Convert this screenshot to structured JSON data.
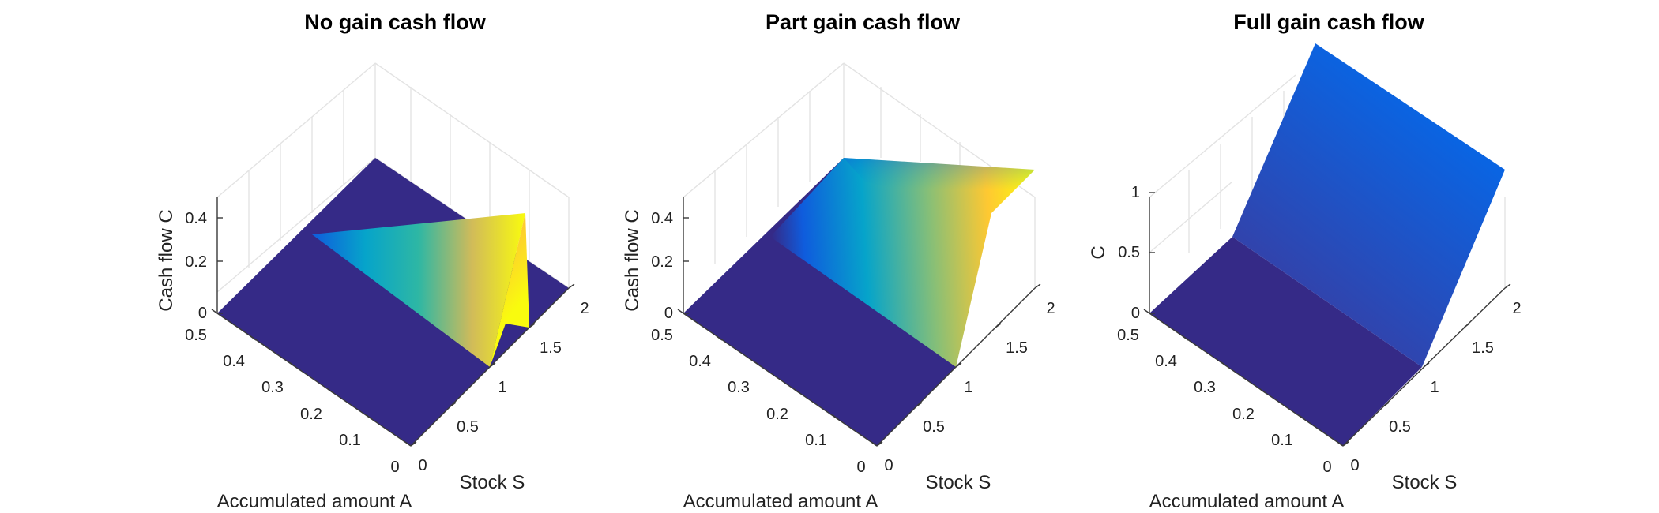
{
  "chart_data": [
    {
      "type": "surface",
      "panel": "no-gain",
      "title": "No gain cash flow",
      "xlabel": "Accumulated amount A",
      "ylabel": "Stock S",
      "zlabel": "Cash flow C",
      "xlim": [
        0,
        0.5
      ],
      "ylim": [
        0,
        2
      ],
      "zlim": [
        0,
        0.45
      ],
      "xticks": [
        "0",
        "0.1",
        "0.2",
        "0.3",
        "0.4",
        "0.5"
      ],
      "yticks": [
        "0",
        "0.5",
        "1",
        "1.5",
        "2"
      ],
      "zticks": [
        "0",
        "0.2",
        "0.4"
      ],
      "colormap": "parula",
      "grid": true,
      "profile": {
        "S": [
          0,
          0.95,
          1.0,
          1.5,
          1.5,
          2.0
        ],
        "C": [
          0,
          0,
          0,
          0.45,
          0,
          0
        ],
        "varies_with_A": true,
        "note_visible": ""
      },
      "surface_points": {
        "A": [
          0,
          0.1,
          0.2,
          0.3,
          0.4,
          0.5
        ],
        "S": [
          1.0,
          1.25,
          1.5
        ],
        "C": [
          [
            0,
            0.05,
            0.45
          ],
          [
            0,
            0.1,
            0.45
          ],
          [
            0,
            0.15,
            0.45
          ],
          [
            0,
            0.2,
            0.45
          ],
          [
            0,
            0.22,
            0.45
          ],
          [
            0,
            0.22,
            0.45
          ]
        ]
      }
    },
    {
      "type": "surface",
      "panel": "part-gain",
      "title": "Part gain cash flow",
      "xlabel": "Accumulated amount A",
      "ylabel": "Stock S",
      "zlabel": "Cash flow C",
      "xlim": [
        0,
        0.5
      ],
      "ylim": [
        0,
        2
      ],
      "zlim": [
        0,
        0.45
      ],
      "xticks": [
        "0",
        "0.1",
        "0.2",
        "0.3",
        "0.4",
        "0.5"
      ],
      "yticks": [
        "0",
        "0.5",
        "1",
        "1.5",
        "2"
      ],
      "zticks": [
        "0",
        "0.2",
        "0.4"
      ],
      "colormap": "parula",
      "grid": true,
      "surface_points": {
        "S": [
          0,
          1.0,
          1.5,
          2.0
        ],
        "C": [
          0,
          0,
          0.45,
          0.5
        ]
      }
    },
    {
      "type": "surface",
      "panel": "full-gain",
      "title": "Full gain cash flow",
      "xlabel": "Accumulated amount A",
      "ylabel": "Stock S",
      "zlabel": "C",
      "xlim": [
        0,
        0.5
      ],
      "ylim": [
        0,
        2
      ],
      "zlim": [
        0,
        1
      ],
      "xticks": [
        "0",
        "0.1",
        "0.2",
        "0.3",
        "0.4",
        "0.5"
      ],
      "yticks": [
        "0",
        "0.5",
        "1",
        "1.5",
        "2"
      ],
      "zticks": [
        "0",
        "0.5",
        "1"
      ],
      "colormap": "parula",
      "grid": true,
      "surface_points": {
        "S": [
          0,
          1.0,
          2.0
        ],
        "C": [
          0,
          0,
          1.0
        ]
      }
    }
  ],
  "colors": {
    "flat": "#352a87",
    "parula": [
      "#352a87",
      "#0f5cdd",
      "#1481d6",
      "#06a4ca",
      "#2eb7a4",
      "#87bf77",
      "#d1bb59",
      "#fec832",
      "#f9fb0e"
    ],
    "full_gain_low": "#3a3ca0",
    "full_gain_high": "#0a64e2"
  }
}
